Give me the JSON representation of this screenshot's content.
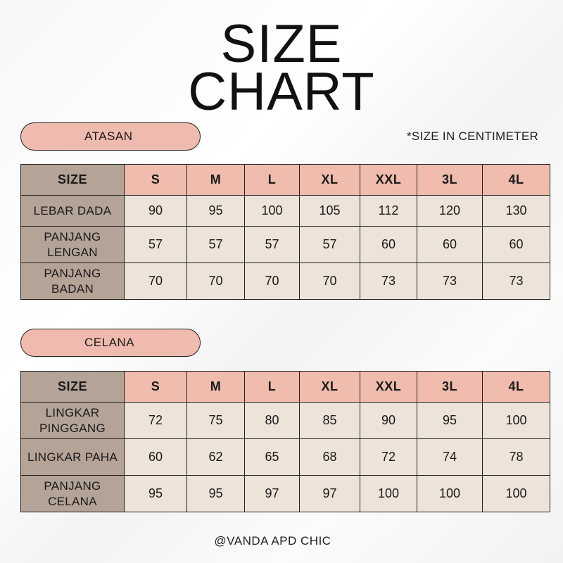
{
  "title": {
    "line1": "SIZE",
    "line2": "CHART"
  },
  "note": "*SIZE IN CENTIMETER",
  "footer": "@VANDA APD CHIC",
  "colors": {
    "pill": "#efbbae",
    "header_cell": "#f0bcae",
    "label_cell": "#b4a397",
    "value_cell": "#ede3d8"
  },
  "tables": [
    {
      "section": "ATASAN",
      "corner": "SIZE",
      "sizes": [
        "S",
        "M",
        "L",
        "XL",
        "XXL",
        "3L",
        "4L"
      ],
      "rows": [
        {
          "label": "LEBAR DADA",
          "values": [
            "90",
            "95",
            "100",
            "105",
            "112",
            "120",
            "130"
          ]
        },
        {
          "label": "PANJANG LENGAN",
          "values": [
            "57",
            "57",
            "57",
            "57",
            "60",
            "60",
            "60"
          ]
        },
        {
          "label": "PANJANG BADAN",
          "values": [
            "70",
            "70",
            "70",
            "70",
            "73",
            "73",
            "73"
          ]
        }
      ]
    },
    {
      "section": "CELANA",
      "corner": "SIZE",
      "sizes": [
        "S",
        "M",
        "L",
        "XL",
        "XXL",
        "3L",
        "4L"
      ],
      "rows": [
        {
          "label": "LINGKAR PINGGANG",
          "values": [
            "72",
            "75",
            "80",
            "85",
            "90",
            "95",
            "100"
          ]
        },
        {
          "label": "LINGKAR PAHA",
          "values": [
            "60",
            "62",
            "65",
            "68",
            "72",
            "74",
            "78"
          ]
        },
        {
          "label": "PANJANG CELANA",
          "values": [
            "95",
            "95",
            "97",
            "97",
            "100",
            "100",
            "100"
          ]
        }
      ]
    }
  ]
}
